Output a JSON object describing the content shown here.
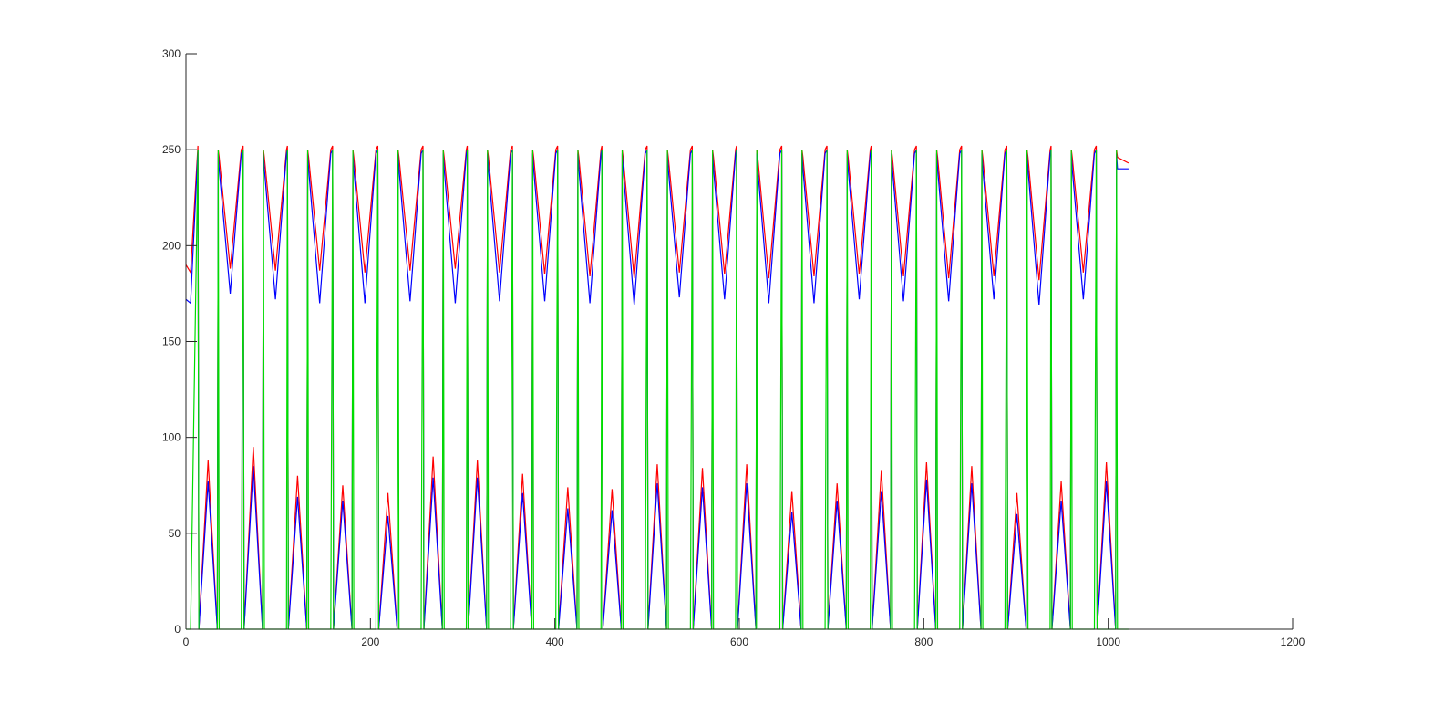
{
  "chart_data": {
    "type": "line",
    "x": [
      0,
      5,
      13,
      14,
      24,
      34,
      35,
      36,
      48,
      60,
      62,
      63,
      73,
      83,
      84,
      85,
      97,
      109,
      110,
      111,
      121,
      131,
      132,
      133,
      145,
      157,
      159,
      160,
      170,
      180,
      181,
      182,
      194,
      206,
      208,
      209,
      219,
      229,
      230,
      231,
      243,
      255,
      257,
      258,
      268,
      278,
      279,
      280,
      292,
      304,
      305,
      306,
      316,
      326,
      327,
      328,
      340,
      352,
      354,
      355,
      365,
      375,
      376,
      377,
      389,
      401,
      403,
      404,
      414,
      424,
      425,
      426,
      438,
      450,
      451,
      452,
      462,
      472,
      473,
      474,
      486,
      498,
      500,
      501,
      511,
      521,
      522,
      523,
      535,
      547,
      549,
      550,
      560,
      570,
      571,
      572,
      584,
      596,
      597,
      598,
      608,
      618,
      619,
      620,
      632,
      644,
      646,
      647,
      657,
      667,
      668,
      669,
      681,
      693,
      695,
      696,
      706,
      716,
      717,
      718,
      730,
      742,
      743,
      744,
      754,
      764,
      765,
      766,
      778,
      790,
      792,
      793,
      803,
      813,
      814,
      815,
      827,
      839,
      841,
      842,
      852,
      862,
      863,
      864,
      876,
      888,
      890,
      891,
      901,
      911,
      912,
      913,
      925,
      937,
      938,
      939,
      949,
      959,
      960,
      961,
      973,
      985,
      987,
      988,
      998,
      1008,
      1009,
      1010,
      1022
    ],
    "series": [
      {
        "color": "#ff0000",
        "values": [
          190,
          186,
          252,
          0,
          88,
          0,
          250,
          246,
          188,
          250,
          252,
          0,
          95,
          0,
          250,
          246,
          187,
          250,
          252,
          0,
          80,
          0,
          250,
          246,
          187,
          250,
          252,
          0,
          75,
          0,
          250,
          246,
          186,
          250,
          252,
          0,
          71,
          0,
          250,
          246,
          187,
          250,
          252,
          0,
          90,
          0,
          250,
          246,
          188,
          250,
          252,
          0,
          88,
          0,
          250,
          246,
          186,
          250,
          252,
          0,
          81,
          0,
          250,
          246,
          185,
          250,
          252,
          0,
          74,
          0,
          250,
          246,
          184,
          250,
          252,
          0,
          73,
          0,
          250,
          246,
          183,
          250,
          252,
          0,
          86,
          0,
          250,
          246,
          186,
          250,
          252,
          0,
          84,
          0,
          250,
          246,
          185,
          250,
          252,
          0,
          86,
          0,
          250,
          246,
          183,
          250,
          252,
          0,
          72,
          0,
          250,
          246,
          184,
          250,
          252,
          0,
          76,
          0,
          250,
          246,
          185,
          250,
          252,
          0,
          83,
          0,
          250,
          246,
          184,
          250,
          252,
          0,
          87,
          0,
          250,
          246,
          183,
          250,
          252,
          0,
          85,
          0,
          250,
          246,
          184,
          250,
          252,
          0,
          71,
          0,
          250,
          246,
          182,
          250,
          252,
          0,
          77,
          0,
          250,
          246,
          186,
          250,
          252,
          0,
          87,
          0,
          250,
          246,
          243
        ]
      },
      {
        "color": "#0000ff",
        "values": [
          172,
          170,
          250,
          0,
          77,
          0,
          248,
          240,
          175,
          248,
          250,
          0,
          85,
          0,
          248,
          240,
          172,
          248,
          250,
          0,
          69,
          0,
          248,
          240,
          170,
          248,
          250,
          0,
          67,
          0,
          248,
          240,
          170,
          248,
          250,
          0,
          59,
          0,
          248,
          240,
          171,
          248,
          250,
          0,
          79,
          0,
          248,
          240,
          170,
          248,
          250,
          0,
          79,
          0,
          248,
          240,
          171,
          248,
          250,
          0,
          71,
          0,
          248,
          240,
          171,
          248,
          250,
          0,
          63,
          0,
          248,
          240,
          170,
          248,
          250,
          0,
          62,
          0,
          248,
          240,
          169,
          248,
          250,
          0,
          76,
          0,
          248,
          240,
          173,
          248,
          250,
          0,
          74,
          0,
          248,
          240,
          172,
          248,
          250,
          0,
          76,
          0,
          248,
          240,
          170,
          248,
          250,
          0,
          61,
          0,
          248,
          240,
          170,
          248,
          250,
          0,
          67,
          0,
          248,
          240,
          172,
          248,
          250,
          0,
          72,
          0,
          248,
          240,
          171,
          248,
          250,
          0,
          78,
          0,
          248,
          240,
          171,
          248,
          250,
          0,
          76,
          0,
          248,
          240,
          172,
          248,
          250,
          0,
          60,
          0,
          248,
          240,
          169,
          248,
          250,
          0,
          67,
          0,
          248,
          240,
          172,
          248,
          250,
          0,
          77,
          0,
          248,
          240,
          240
        ]
      },
      {
        "color": "#00dd00",
        "values": [
          0,
          0,
          250,
          0,
          0,
          0,
          250,
          0,
          0,
          0,
          250,
          0,
          0,
          0,
          250,
          0,
          0,
          0,
          250,
          0,
          0,
          0,
          250,
          0,
          0,
          0,
          250,
          0,
          0,
          0,
          250,
          0,
          0,
          0,
          250,
          0,
          0,
          0,
          250,
          0,
          0,
          0,
          250,
          0,
          0,
          0,
          250,
          0,
          0,
          0,
          250,
          0,
          0,
          0,
          250,
          0,
          0,
          0,
          250,
          0,
          0,
          0,
          250,
          0,
          0,
          0,
          250,
          0,
          0,
          0,
          250,
          0,
          0,
          0,
          250,
          0,
          0,
          0,
          250,
          0,
          0,
          0,
          250,
          0,
          0,
          0,
          250,
          0,
          0,
          0,
          250,
          0,
          0,
          0,
          250,
          0,
          0,
          0,
          250,
          0,
          0,
          0,
          250,
          0,
          0,
          0,
          250,
          0,
          0,
          0,
          250,
          0,
          0,
          0,
          250,
          0,
          0,
          0,
          250,
          0,
          0,
          0,
          250,
          0,
          0,
          0,
          250,
          0,
          0,
          0,
          250,
          0,
          0,
          0,
          250,
          0,
          0,
          0,
          250,
          0,
          0,
          0,
          250,
          0,
          0,
          0,
          250,
          0,
          0,
          0,
          250,
          0,
          0,
          0,
          250,
          0,
          0,
          0,
          250,
          0,
          0,
          0,
          250,
          0,
          0,
          0,
          250,
          0,
          0
        ]
      }
    ],
    "xlim": [
      0,
      1200
    ],
    "xticks": [
      0,
      200,
      400,
      600,
      800,
      1000,
      1200
    ],
    "ylim": [
      0,
      300
    ],
    "yticks": [
      0,
      50,
      100,
      150,
      200,
      250,
      300
    ]
  }
}
